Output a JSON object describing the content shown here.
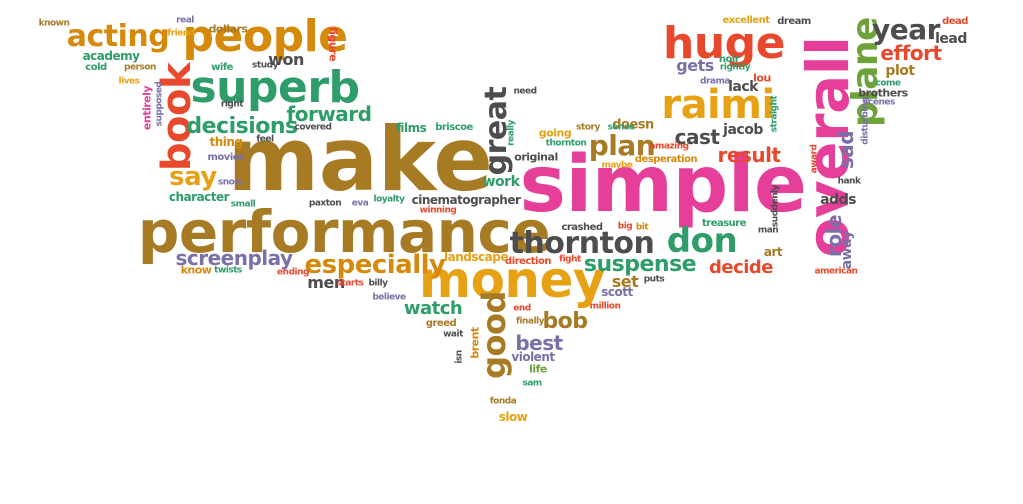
{
  "wordcloud": {
    "words": [
      "make",
      "simple",
      "performance",
      "overall",
      "money",
      "people",
      "superb",
      "book",
      "huge",
      "raimi",
      "plane",
      "acting",
      "year",
      "thornton",
      "don",
      "great",
      "especially",
      "say",
      "suspense",
      "decisions",
      "forward",
      "plan",
      "bob",
      "good",
      "screenplay",
      "result",
      "decide",
      "watch",
      "best",
      "cast",
      "effort",
      "sad",
      "role",
      "away",
      "known",
      "real",
      "friend",
      "dollars",
      "academy",
      "wife",
      "won",
      "figure",
      "cold",
      "person",
      "lives",
      "entirely",
      "supposed",
      "right",
      "study",
      "thing",
      "feel",
      "movies",
      "snow",
      "character",
      "small",
      "know",
      "twists",
      "ending",
      "men",
      "starts",
      "billy",
      "believe",
      "paxton",
      "eva",
      "loyalty",
      "cinematographer",
      "winning",
      "films",
      "briscoe",
      "covered",
      "need",
      "really",
      "going",
      "story",
      "thornton",
      "original",
      "doesn",
      "sense",
      "maybe",
      "desperation",
      "amazing",
      "jacob",
      "lou",
      "gets",
      "rightly",
      "lack",
      "drama",
      "noir",
      "excellent",
      "dream",
      "dead",
      "lead",
      "plot",
      "come",
      "brothers",
      "scenes",
      "disturbing",
      "hank",
      "suddenly",
      "straight",
      "award",
      "treasure",
      "man",
      "adds",
      "american",
      "art",
      "crashed",
      "big",
      "bit",
      "fight",
      "landscape",
      "direction",
      "work",
      "set",
      "puts",
      "scott",
      "million",
      "end",
      "finally",
      "greed",
      "wait",
      "brent",
      "isn",
      "violent",
      "life",
      "sam",
      "fonda",
      "slow"
    ]
  }
}
